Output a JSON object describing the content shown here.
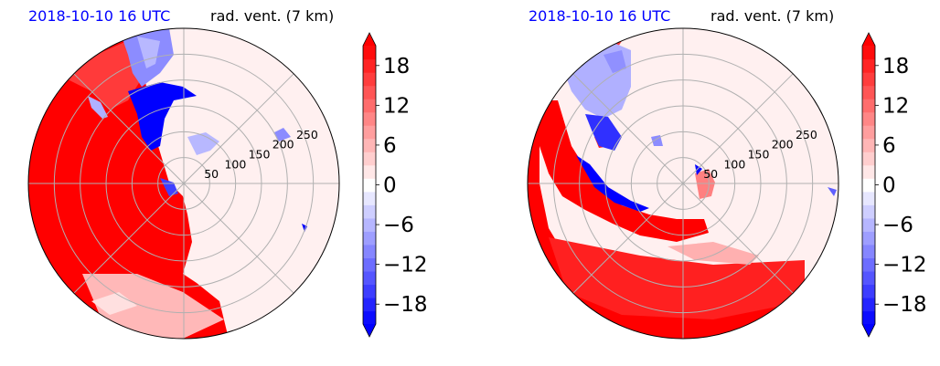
{
  "chart_data": [
    {
      "type": "heatmap",
      "projection": "polar",
      "title_left": "2018-10-10 16 UTC",
      "title_right": "rad. vent. (7 km)",
      "radial_ticks": [
        "50",
        "100",
        "150",
        "200",
        "250"
      ],
      "radial_tick_values": [
        50,
        100,
        150,
        200,
        250
      ],
      "radial_max": 300,
      "angular_gridlines_deg": [
        0,
        45,
        90,
        135,
        180,
        225,
        270,
        315
      ],
      "grid": true,
      "colorbar": {
        "label": "",
        "ticks": [
          "18",
          "12",
          "6",
          "0",
          "−6",
          "−12",
          "−18"
        ],
        "tick_values": [
          18,
          12,
          6,
          0,
          -6,
          -12,
          -18
        ],
        "range": [
          -21,
          21
        ],
        "levels": 21,
        "extend": "both",
        "cmap": "bwr",
        "color_negative": "#0000ff",
        "color_positive": "#ff0000",
        "color_zero": "#ffffff"
      }
    },
    {
      "type": "heatmap",
      "projection": "polar",
      "title_left": "2018-10-10 16 UTC",
      "title_right": "rad. vent. (7 km)",
      "radial_ticks": [
        "50",
        "100",
        "150",
        "200",
        "250"
      ],
      "radial_tick_values": [
        50,
        100,
        150,
        200,
        250
      ],
      "radial_max": 300,
      "angular_gridlines_deg": [
        0,
        45,
        90,
        135,
        180,
        225,
        270,
        315
      ],
      "grid": true,
      "colorbar": {
        "label": "",
        "ticks": [
          "18",
          "12",
          "6",
          "0",
          "−6",
          "−12",
          "−18"
        ],
        "tick_values": [
          18,
          12,
          6,
          0,
          -6,
          -12,
          -18
        ],
        "range": [
          -21,
          21
        ],
        "levels": 21,
        "extend": "both",
        "cmap": "bwr",
        "color_negative": "#0000ff",
        "color_positive": "#ff0000",
        "color_zero": "#ffffff"
      }
    }
  ],
  "colors": {
    "title_left": "#0000ff",
    "title_right": "#000000",
    "grid": "#b0b0b0",
    "background_field": "#fff0f0"
  }
}
